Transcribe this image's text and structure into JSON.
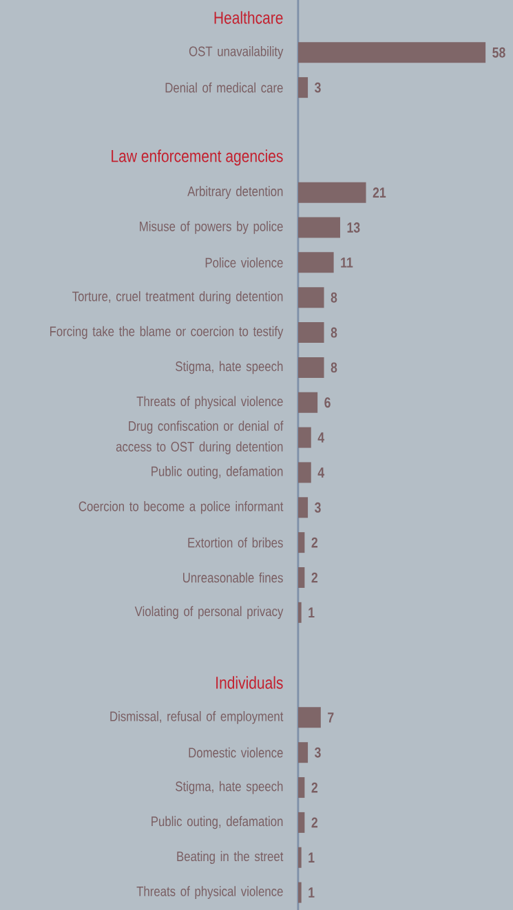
{
  "chart_data": {
    "type": "bar",
    "orientation": "horizontal",
    "categories": [
      "Healthcare",
      "OST unavailability",
      "Denial of medical care",
      null,
      "Law enforcement agencies",
      "Arbitrary detention",
      "Misuse of powers by police",
      "Police violence",
      "Torture, cruel treatment during detention",
      "Forcing take the blame or coercion to testify",
      "Stigma, hate speech",
      "Threats of physical violence",
      "Drug confiscation or denial of access to OST during detention",
      "Public outing, defamation",
      "Coercion to become a police informant",
      "Extortion of bribes",
      "Unreasonable fines",
      "Violating of personal privacy",
      null,
      "Individuals",
      "Dismissal, refusal of employment",
      "Domestic violence",
      "Stigma, hate speech",
      "Public outing, defamation",
      "Beating in the street",
      "Threats of physical violence"
    ],
    "values": [
      null,
      58,
      3,
      null,
      null,
      21,
      13,
      11,
      8,
      8,
      8,
      6,
      4,
      4,
      3,
      2,
      2,
      1,
      null,
      null,
      7,
      3,
      2,
      2,
      1,
      1
    ],
    "color": "#7f6668",
    "xlim": [
      0,
      66.5
    ],
    "data_labels": true
  }
}
